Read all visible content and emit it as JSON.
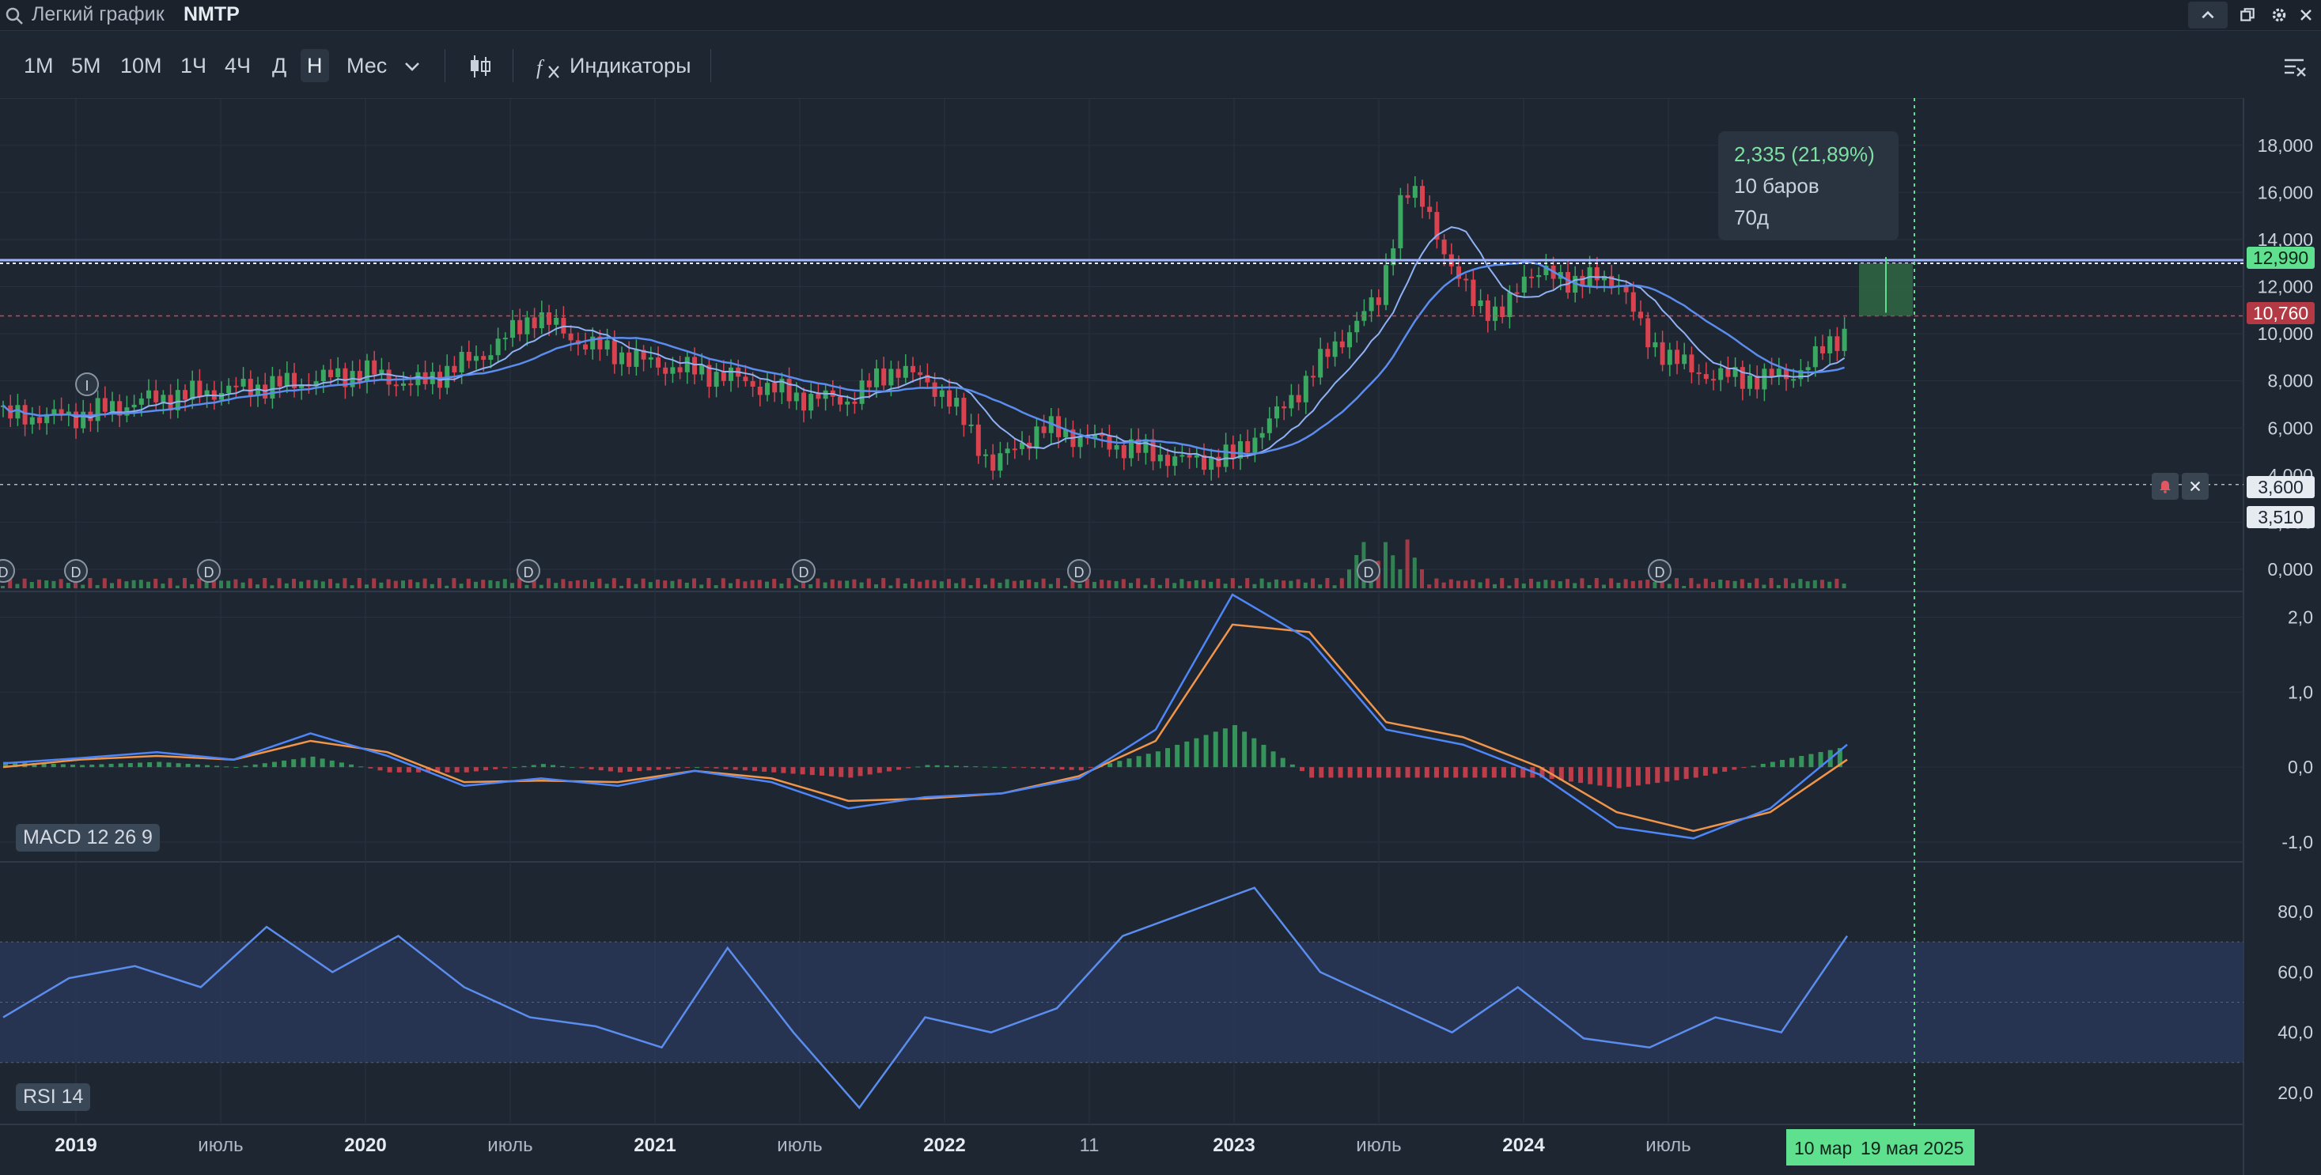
{
  "header": {
    "title": "Легкий график",
    "symbol": "NMTP"
  },
  "toolbar": {
    "timeframes": [
      "1М",
      "5М",
      "10М",
      "1Ч",
      "4Ч",
      "Д",
      "Н",
      "Мес"
    ],
    "active_timeframe": "Н",
    "indicators_label": "Индикаторы"
  },
  "measure_tooltip": {
    "change": "2,335 (21,89%)",
    "bars": "10 баров",
    "duration": "70д"
  },
  "price_tags": {
    "upper": "12,990",
    "lower": "10,760",
    "alert1": "3,600",
    "alert2": "3,510"
  },
  "panes": {
    "macd_label": "MACD 12 26 9",
    "rsi_label": "RSI 14"
  },
  "crosshair_date_labels": {
    "start": "10 мар",
    "end": "19 мая 2025"
  },
  "colors": {
    "up": "#3aa860",
    "down": "#d9434f",
    "ma_fast": "#5b8def",
    "ma_slow": "#8fb2f5",
    "macd_line": "#4f86f7",
    "signal_line": "#f0954a",
    "rsi_line": "#5b8def",
    "accent_green": "#5fe08e"
  },
  "chart_data": [
    {
      "type": "candlestick",
      "title": "NMTP",
      "x_ticks": [
        "2019",
        "июль",
        "2020",
        "июль",
        "2021",
        "июль",
        "2022",
        "11",
        "2023",
        "июль",
        "2024",
        "июль"
      ],
      "y_ticks": [
        "18,000",
        "16,000",
        "14,000",
        "12,000",
        "10,000",
        "8,000",
        "6,000",
        "4,000",
        "2,000",
        "0,000"
      ],
      "ylim": [
        0,
        19
      ],
      "approx_close_series": [
        {
          "x": "2019-01",
          "y": 6.5
        },
        {
          "x": "2019-04",
          "y": 7.2
        },
        {
          "x": "2019-07",
          "y": 7.6
        },
        {
          "x": "2019-10",
          "y": 7.9
        },
        {
          "x": "2020-01",
          "y": 8.4
        },
        {
          "x": "2020-03",
          "y": 7.8
        },
        {
          "x": "2020-06",
          "y": 9.2
        },
        {
          "x": "2020-08",
          "y": 10.8
        },
        {
          "x": "2020-10",
          "y": 9.6
        },
        {
          "x": "2021-01",
          "y": 8.7
        },
        {
          "x": "2021-04",
          "y": 8.2
        },
        {
          "x": "2021-07",
          "y": 7.3
        },
        {
          "x": "2021-09",
          "y": 7.2
        },
        {
          "x": "2021-11",
          "y": 8.6
        },
        {
          "x": "2022-01",
          "y": 7.5
        },
        {
          "x": "2022-03",
          "y": 4.4
        },
        {
          "x": "2022-05",
          "y": 6.0
        },
        {
          "x": "2022-08",
          "y": 5.3
        },
        {
          "x": "2022-11",
          "y": 4.6
        },
        {
          "x": "2023-01",
          "y": 4.8
        },
        {
          "x": "2023-03",
          "y": 6.8
        },
        {
          "x": "2023-05",
          "y": 9.3
        },
        {
          "x": "2023-07",
          "y": 11.5
        },
        {
          "x": "2023-08",
          "y": 16.0
        },
        {
          "x": "2023-09",
          "y": 15.5
        },
        {
          "x": "2023-10",
          "y": 12.6
        },
        {
          "x": "2023-12",
          "y": 10.5
        },
        {
          "x": "2024-01",
          "y": 12.6
        },
        {
          "x": "2024-03",
          "y": 12.3
        },
        {
          "x": "2024-05",
          "y": 12.3
        },
        {
          "x": "2024-06",
          "y": 9.8
        },
        {
          "x": "2024-08",
          "y": 8.4
        },
        {
          "x": "2024-10",
          "y": 8.1
        },
        {
          "x": "2024-12",
          "y": 8.2
        },
        {
          "x": "2025-01",
          "y": 8.9
        },
        {
          "x": "2025-03",
          "y": 10.76
        }
      ],
      "horizontal_lines": [
        12.99,
        10.76,
        3.6,
        3.51
      ],
      "dividend_markers": 8
    },
    {
      "type": "line",
      "title": "MACD 12 26 9",
      "y_ticks": [
        "2,0",
        "1,0",
        "0,0",
        "-1,0"
      ],
      "ylim": [
        -1.2,
        2.3
      ],
      "series": [
        {
          "name": "MACD",
          "values": [
            0.05,
            0.12,
            0.2,
            0.1,
            0.45,
            0.15,
            -0.25,
            -0.15,
            -0.25,
            -0.05,
            -0.2,
            -0.55,
            -0.4,
            -0.35,
            -0.15,
            0.5,
            2.3,
            1.7,
            0.5,
            0.3,
            -0.1,
            -0.8,
            -0.95,
            -0.55,
            0.3
          ]
        },
        {
          "name": "Signal",
          "values": [
            0.0,
            0.1,
            0.15,
            0.1,
            0.35,
            0.2,
            -0.2,
            -0.18,
            -0.2,
            -0.05,
            -0.15,
            -0.45,
            -0.42,
            -0.35,
            -0.12,
            0.35,
            1.9,
            1.8,
            0.6,
            0.4,
            0.0,
            -0.6,
            -0.85,
            -0.6,
            0.1
          ]
        }
      ]
    },
    {
      "type": "line",
      "title": "RSI 14",
      "y_ticks": [
        "80,0",
        "60,0",
        "40,0",
        "20,0"
      ],
      "ylim": [
        10,
        95
      ],
      "series": [
        {
          "name": "RSI",
          "values": [
            45,
            58,
            62,
            55,
            75,
            60,
            72,
            55,
            45,
            42,
            35,
            68,
            40,
            15,
            45,
            40,
            48,
            72,
            80,
            88,
            60,
            50,
            40,
            55,
            38,
            35,
            45,
            40,
            72
          ]
        }
      ]
    }
  ]
}
